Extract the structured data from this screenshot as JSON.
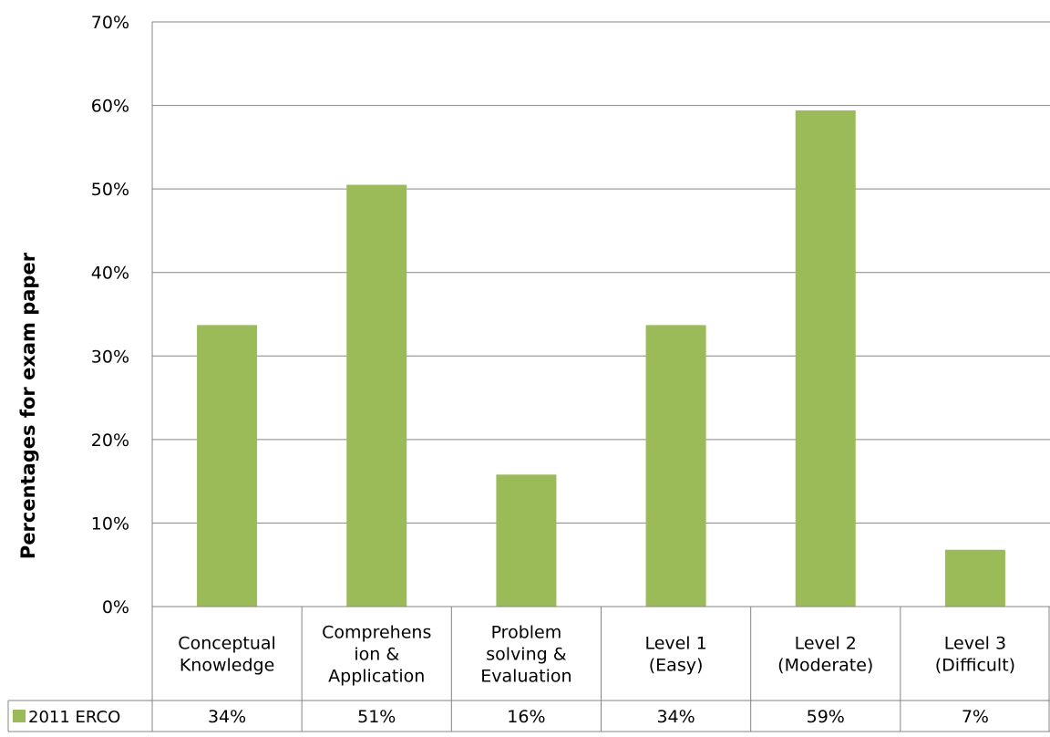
{
  "chart_data": {
    "type": "bar",
    "ylabel": "Percentages for exam paper",
    "ylim": [
      0,
      0.7
    ],
    "y_ticks": [
      "0%",
      "10%",
      "20%",
      "30%",
      "40%",
      "50%",
      "60%",
      "70%"
    ],
    "grid": true,
    "categories": [
      [
        "Conceptual",
        "Knowledge"
      ],
      [
        "Comprehens",
        "ion &",
        "Application"
      ],
      [
        "Problem",
        "solving &",
        "Evaluation"
      ],
      [
        "Level 1",
        "(Easy)"
      ],
      [
        "Level 2",
        "(Moderate)"
      ],
      [
        "Level 3",
        "(Difficult)"
      ]
    ],
    "series": [
      {
        "name": "2011 ERCO",
        "color": "#9bbb59",
        "values": [
          0.337,
          0.505,
          0.158,
          0.337,
          0.594,
          0.068
        ],
        "table_labels": [
          "34%",
          "51%",
          "16%",
          "34%",
          "59%",
          "7%"
        ]
      }
    ],
    "data_table": true
  }
}
